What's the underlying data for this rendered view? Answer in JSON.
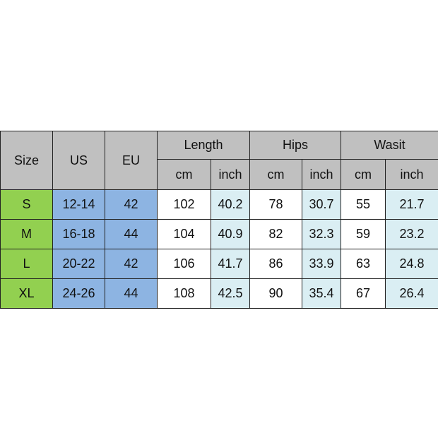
{
  "headers": {
    "size": "Size",
    "us": "US",
    "eu": "EU",
    "groups": [
      "Length",
      "Hips",
      "Wasit"
    ],
    "units": [
      "cm",
      "inch"
    ]
  },
  "rows": [
    {
      "size": "S",
      "us": "12-14",
      "eu": "42",
      "length_cm": "102",
      "length_in": "40.2",
      "hips_cm": "78",
      "hips_in": "30.7",
      "waist_cm": "55",
      "waist_in": "21.7"
    },
    {
      "size": "M",
      "us": "16-18",
      "eu": "44",
      "length_cm": "104",
      "length_in": "40.9",
      "hips_cm": "82",
      "hips_in": "32.3",
      "waist_cm": "59",
      "waist_in": "23.2"
    },
    {
      "size": "L",
      "us": "20-22",
      "eu": "42",
      "length_cm": "106",
      "length_in": "41.7",
      "hips_cm": "86",
      "hips_in": "33.9",
      "waist_cm": "63",
      "waist_in": "24.8"
    },
    {
      "size": "XL",
      "us": "24-26",
      "eu": "44",
      "length_cm": "108",
      "length_in": "42.5",
      "hips_cm": "90",
      "hips_in": "35.4",
      "waist_cm": "67",
      "waist_in": "26.4"
    }
  ],
  "colors": {
    "header": "#c0c0c0",
    "size": "#92d050",
    "us_eu": "#8db4e2",
    "inch": "#daeef3"
  }
}
